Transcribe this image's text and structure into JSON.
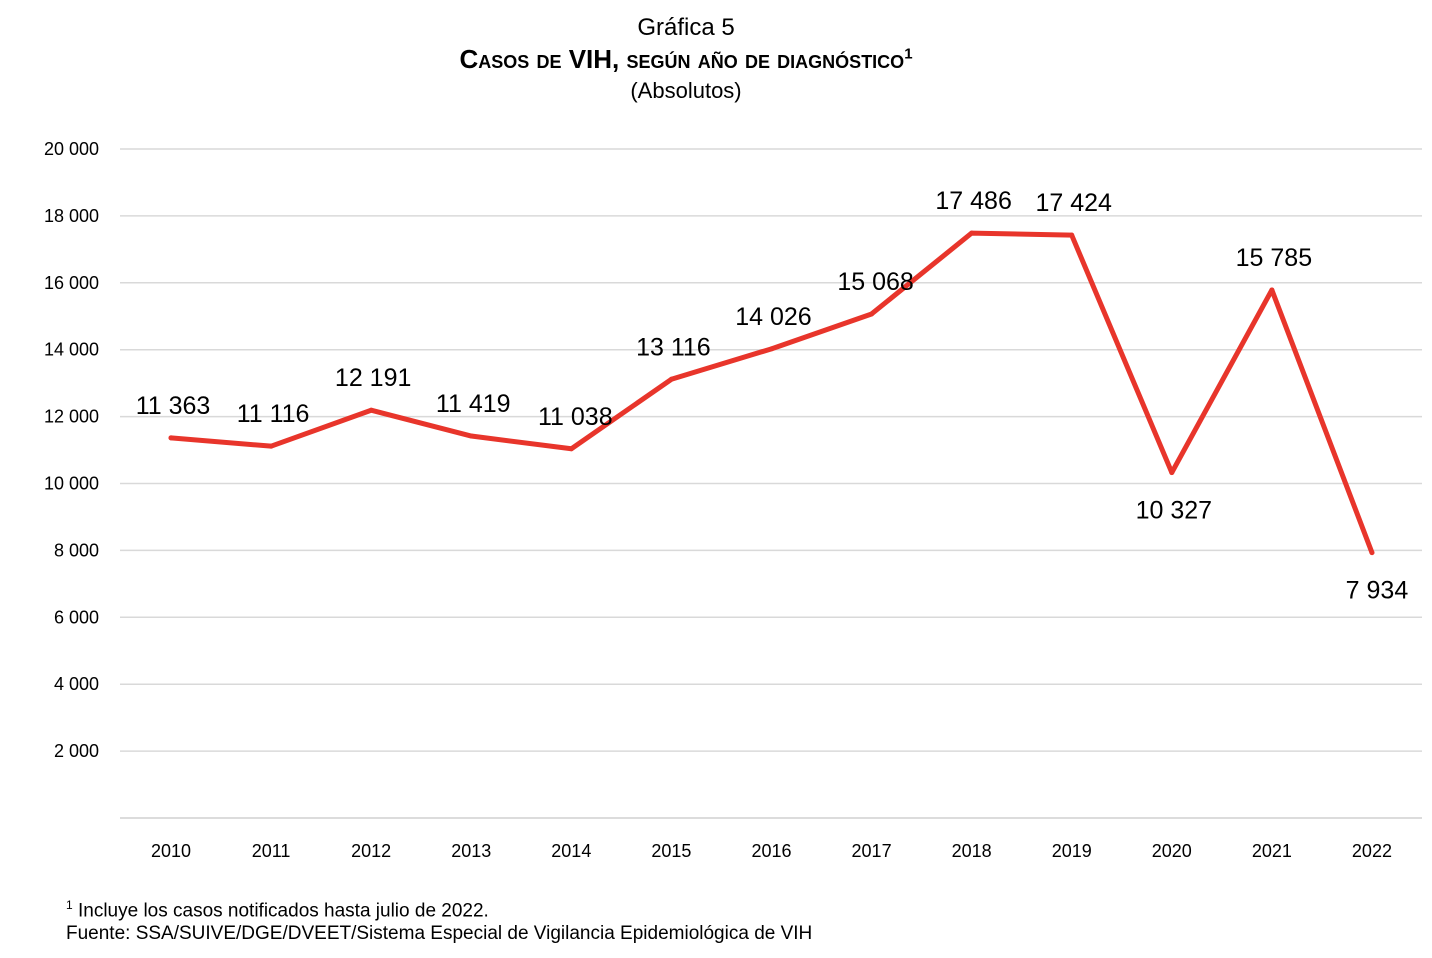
{
  "chart_data": {
    "type": "line",
    "title": "Gráfica 5",
    "subtitle": "Casos de VIH, según año de diagnóstico",
    "subtitle_superscript": "1",
    "units": "(Absolutos)",
    "xlabel": "",
    "ylabel": "",
    "ylim": [
      0,
      20000
    ],
    "y_ticks": [
      2000,
      4000,
      6000,
      8000,
      10000,
      12000,
      14000,
      16000,
      18000,
      20000
    ],
    "y_tick_labels": [
      "2 000",
      "4 000",
      "6 000",
      "8 000",
      "10 000",
      "12 000",
      "14 000",
      "16 000",
      "18 000",
      "20 000"
    ],
    "categories": [
      "2010",
      "2011",
      "2012",
      "2013",
      "2014",
      "2015",
      "2016",
      "2017",
      "2018",
      "2019",
      "2020",
      "2021",
      "2022"
    ],
    "series": [
      {
        "name": "Casos de VIH",
        "color": "#e8352b",
        "values": [
          11363,
          11116,
          12191,
          11419,
          11038,
          13116,
          14026,
          15068,
          17486,
          17424,
          10327,
          15785,
          7934
        ],
        "labels": [
          "11 363",
          "11 116",
          "12 191",
          "11 419",
          "11 038",
          "13 116",
          "14 026",
          "15 068",
          "17 486",
          "17 424",
          "10 327",
          "15 785",
          "7 934"
        ]
      }
    ],
    "grid": true,
    "legend": "none"
  },
  "footnotes": {
    "note_marker": "1",
    "note": "Incluye los casos notificados hasta julio de 2022.",
    "source": "Fuente: SSA/SUIVE/DGE/DVEET/Sistema Especial de Vigilancia Epidemiológica de VIH"
  }
}
